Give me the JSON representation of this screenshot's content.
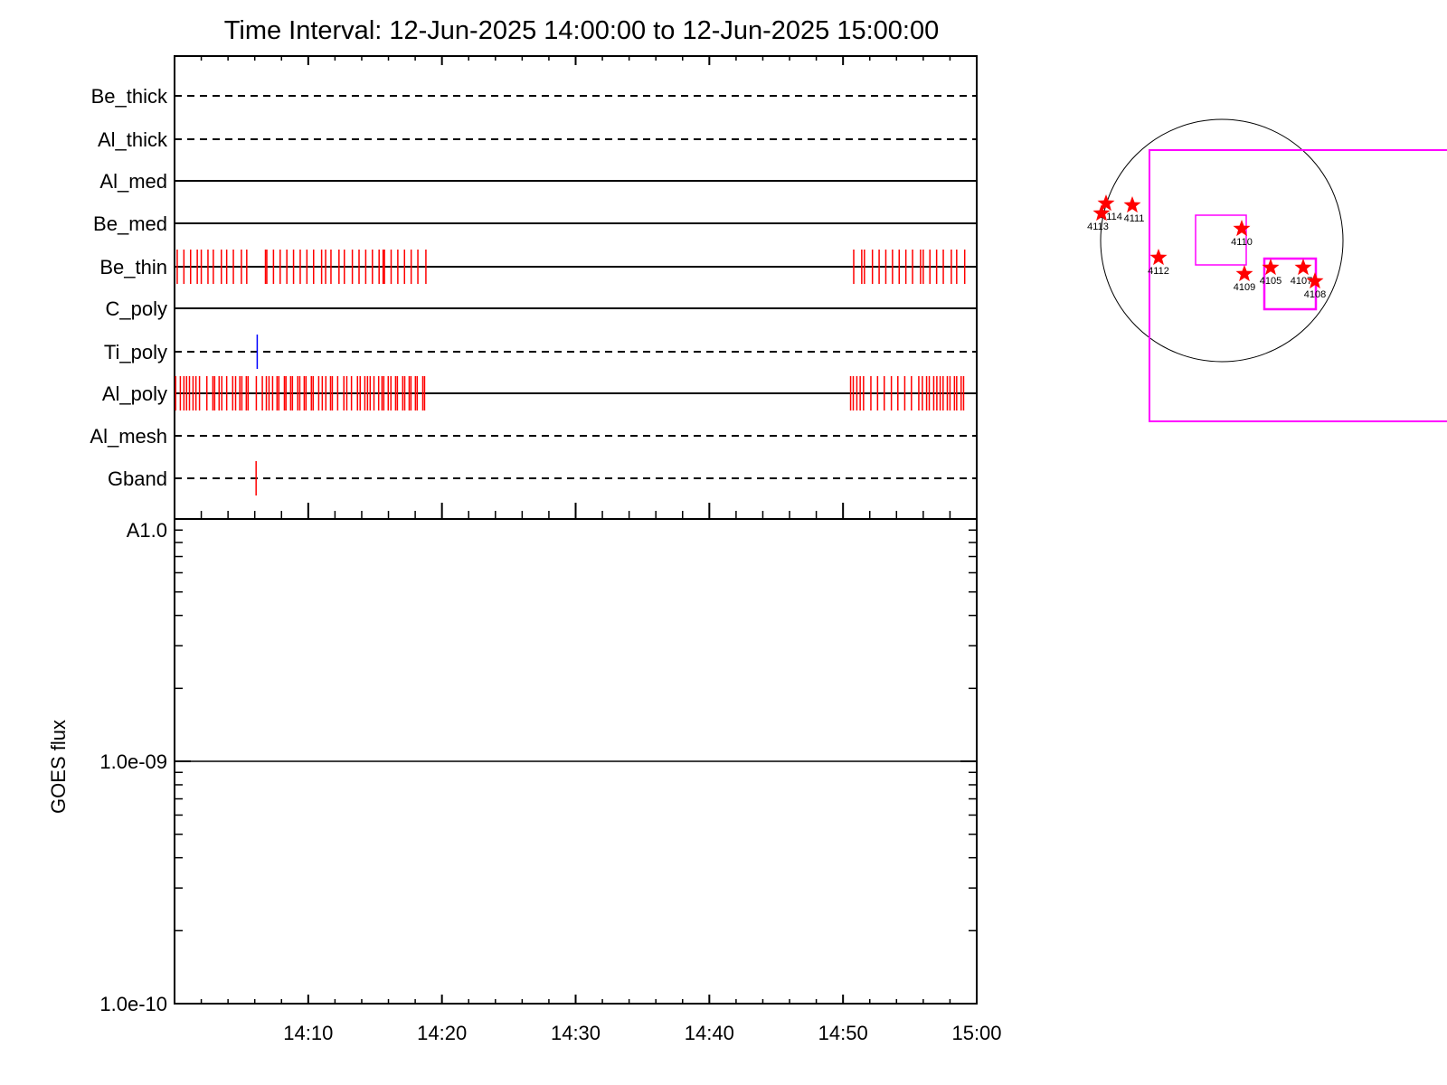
{
  "chart_data": [
    {
      "type": "event-timeline",
      "title": "Time Interval: 12-Jun-2025 14:00:00 to 12-Jun-2025 15:00:00",
      "xlim": [
        "14:00",
        "15:00"
      ],
      "x_ticks": [
        "14:10",
        "14:20",
        "14:30",
        "14:40",
        "14:50",
        "15:00"
      ],
      "rows": [
        {
          "name": "Be_thick",
          "line": "dashed",
          "events": []
        },
        {
          "name": "Al_thick",
          "line": "dashed",
          "events": []
        },
        {
          "name": "Al_med",
          "line": "solid",
          "events": []
        },
        {
          "name": "Be_med",
          "line": "solid",
          "events": []
        },
        {
          "name": "Be_thin",
          "line": "solid",
          "event_color": "#ff0000",
          "events": [
            "14:00:12",
            "14:00:42",
            "14:01:12",
            "14:01:42",
            "14:02:00",
            "14:02:30",
            "14:02:54",
            "14:03:30",
            "14:03:54",
            "14:04:24",
            "14:05:00",
            "14:05:24",
            "14:06:48",
            "14:06:54",
            "14:07:24",
            "14:07:54",
            "14:08:24",
            "14:08:54",
            "14:09:24",
            "14:09:54",
            "14:10:24",
            "14:11:00",
            "14:11:18",
            "14:11:42",
            "14:12:18",
            "14:12:42",
            "14:13:18",
            "14:13:48",
            "14:14:18",
            "14:14:48",
            "14:15:18",
            "14:15:36",
            "14:15:42",
            "14:16:12",
            "14:16:42",
            "14:17:12",
            "14:17:42",
            "14:18:12",
            "14:18:48",
            "14:50:48",
            "14:51:24",
            "14:51:36",
            "14:52:12",
            "14:52:42",
            "14:53:12",
            "14:53:42",
            "14:54:12",
            "14:54:42",
            "14:55:12",
            "14:55:48",
            "14:56:00",
            "14:56:30",
            "14:57:00",
            "14:57:30",
            "14:58:06",
            "14:58:30",
            "14:59:06"
          ]
        },
        {
          "name": "C_poly",
          "line": "solid",
          "events": []
        },
        {
          "name": "Ti_poly",
          "line": "dashed",
          "event_color": "#0000ff",
          "events": [
            "14:06:11"
          ]
        },
        {
          "name": "Al_poly",
          "line": "solid",
          "event_color": "#ff0000",
          "events": [
            "14:00:05",
            "14:00:26",
            "14:00:42",
            "14:00:54",
            "14:01:07",
            "14:01:23",
            "14:01:36",
            "14:01:52",
            "14:02:25",
            "14:02:52",
            "14:03:00",
            "14:03:20",
            "14:03:32",
            "14:03:54",
            "14:04:21",
            "14:04:34",
            "14:04:53",
            "14:05:02",
            "14:05:22",
            "14:05:30",
            "14:06:07",
            "14:06:34",
            "14:06:52",
            "14:07:04",
            "14:07:20",
            "14:07:40",
            "14:07:48",
            "14:08:13",
            "14:08:20",
            "14:08:41",
            "14:08:49",
            "14:09:13",
            "14:09:22",
            "14:09:42",
            "14:09:50",
            "14:10:14",
            "14:10:22",
            "14:10:47",
            "14:11:03",
            "14:11:19",
            "14:11:40",
            "14:11:48",
            "14:12:12",
            "14:12:40",
            "14:12:53",
            "14:13:14",
            "14:13:41",
            "14:13:53",
            "14:14:14",
            "14:14:26",
            "14:14:38",
            "14:14:55",
            "14:15:16",
            "14:15:31",
            "14:15:39",
            "14:15:59",
            "14:16:11",
            "14:16:32",
            "14:16:40",
            "14:17:04",
            "14:17:13",
            "14:17:33",
            "14:17:41",
            "14:18:01",
            "14:18:09",
            "14:18:34",
            "14:18:42",
            "14:50:34",
            "14:50:46",
            "14:51:02",
            "14:51:17",
            "14:51:32",
            "14:52:05",
            "14:52:35",
            "14:53:05",
            "14:53:37",
            "14:54:06",
            "14:54:37",
            "14:55:07",
            "14:55:40",
            "14:55:56",
            "14:56:15",
            "14:56:27",
            "14:56:47",
            "14:57:01",
            "14:57:16",
            "14:57:29",
            "14:57:48",
            "14:58:00",
            "14:58:20",
            "14:58:30",
            "14:58:50",
            "14:59:01"
          ]
        },
        {
          "name": "Al_mesh",
          "line": "dashed",
          "events": []
        },
        {
          "name": "Gband",
          "line": "dashed",
          "event_color": "#ff0000",
          "events": [
            "14:06:06"
          ]
        }
      ]
    },
    {
      "type": "line",
      "ylabel": "GOES flux",
      "yscale": "log",
      "ylim": [
        1e-10,
        1e-08
      ],
      "y_tick_labels": [
        "1.0e-10",
        "1.0e-09",
        "A1.0"
      ],
      "y_tick_values": [
        1e-10,
        1e-09,
        1e-08
      ],
      "xlim": [
        "14:00",
        "15:00"
      ],
      "x_tick_labels": [
        "14:10",
        "14:20",
        "14:30",
        "14:40",
        "14:50",
        "15:00"
      ],
      "series": [
        {
          "x": [
            "14:00",
            "15:00"
          ],
          "y": [
            1e-09,
            1e-09
          ],
          "color": "#000000"
        }
      ]
    },
    {
      "type": "solar-map",
      "disk_color": "#000000",
      "box_color": "#ff00ff",
      "marker_color": "#ff0000",
      "active_regions": [
        "4114",
        "4113",
        "4111",
        "4110",
        "4112",
        "4109",
        "4105",
        "4107",
        "4108"
      ]
    }
  ]
}
